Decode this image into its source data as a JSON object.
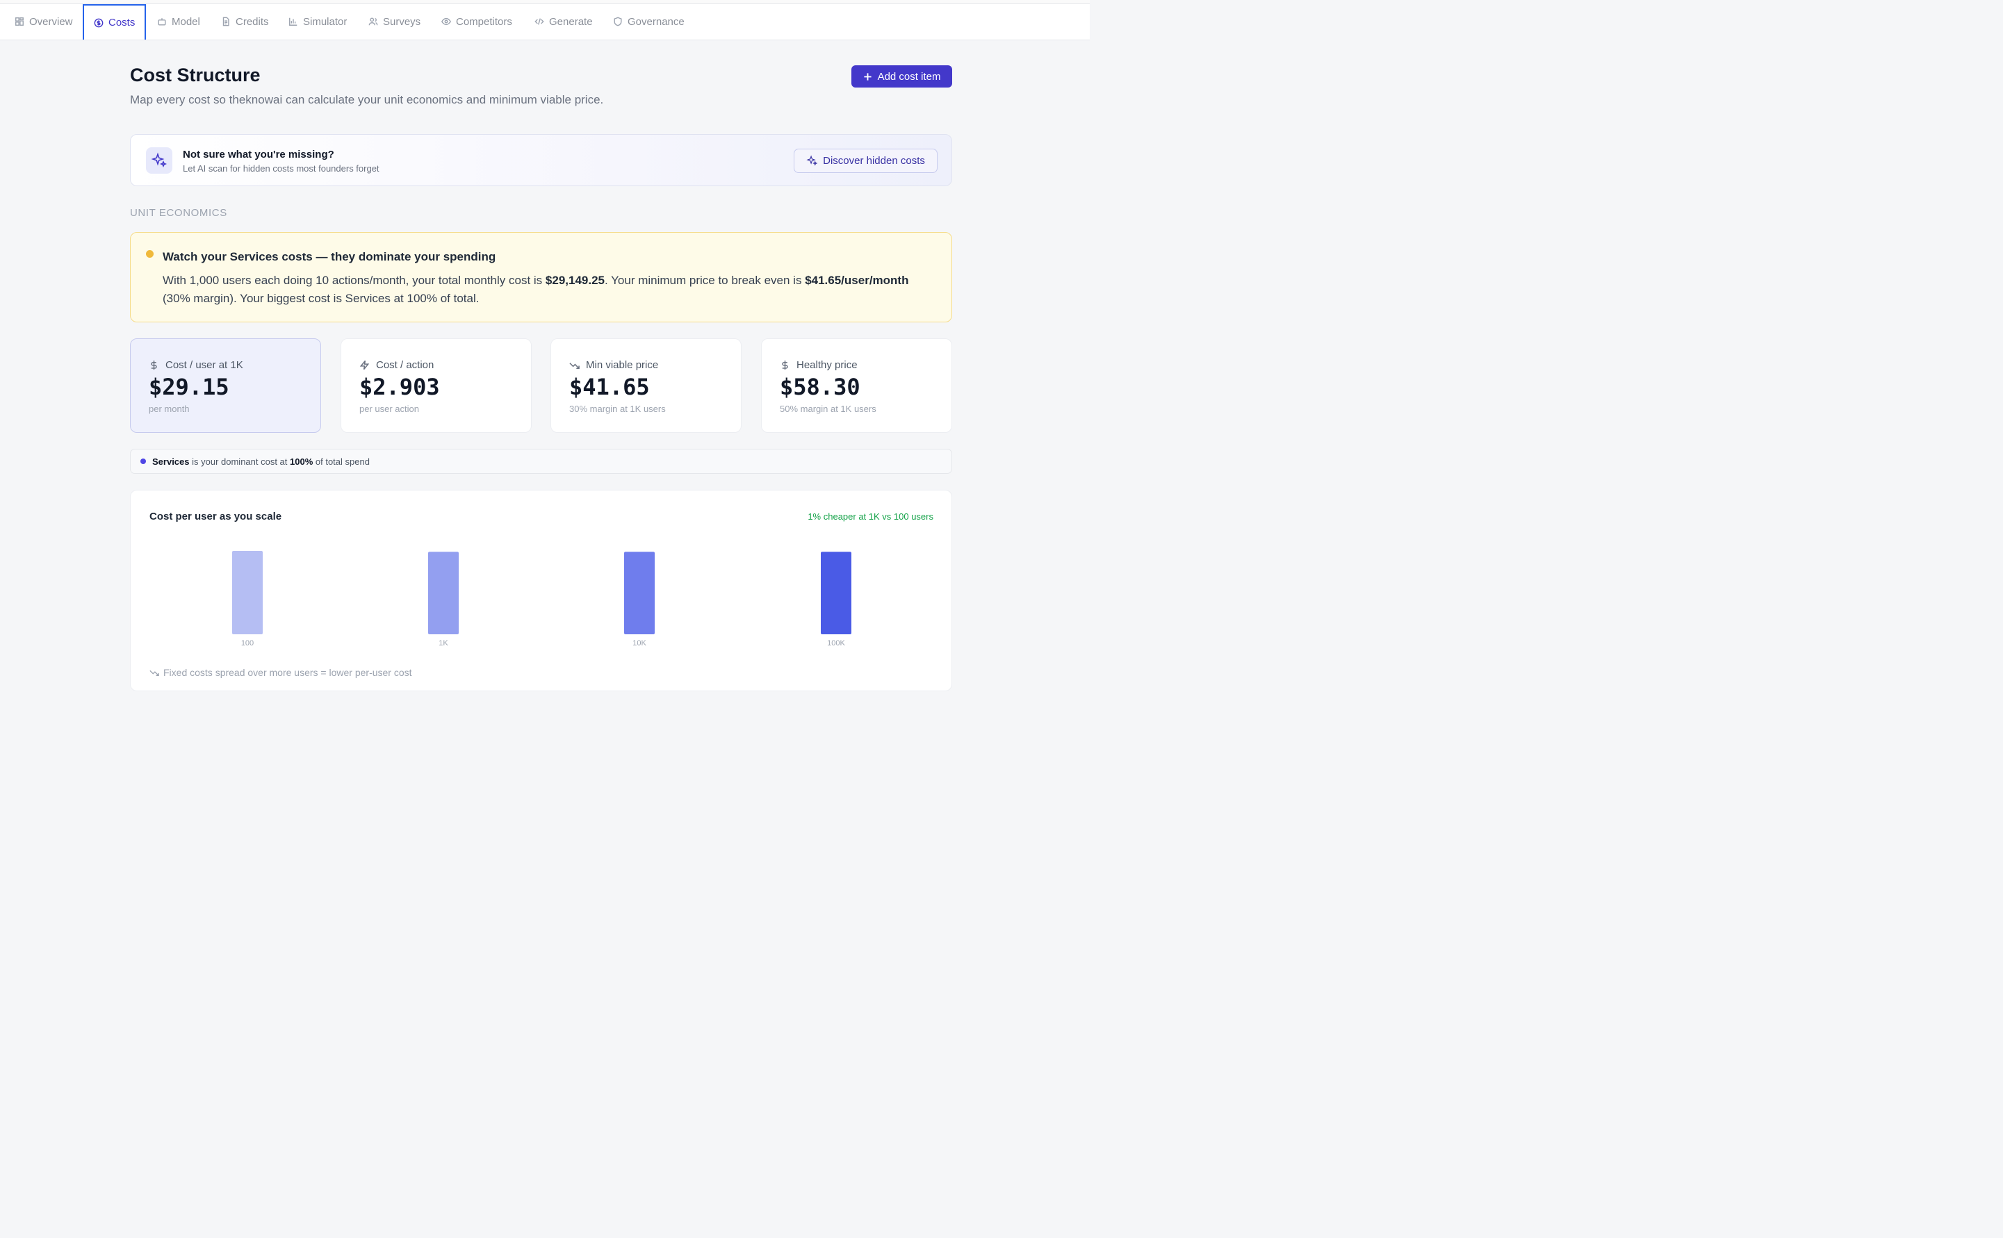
{
  "tabs": [
    {
      "label": "Overview",
      "icon": "grid-icon"
    },
    {
      "label": "Costs",
      "icon": "dollar-circle-icon",
      "active": true
    },
    {
      "label": "Model",
      "icon": "robot-icon"
    },
    {
      "label": "Credits",
      "icon": "document-icon"
    },
    {
      "label": "Simulator",
      "icon": "bar-chart-icon"
    },
    {
      "label": "Surveys",
      "icon": "users-icon"
    },
    {
      "label": "Competitors",
      "icon": "eye-icon"
    },
    {
      "label": "Generate",
      "icon": "code-icon"
    },
    {
      "label": "Governance",
      "icon": "shield-icon"
    }
  ],
  "header": {
    "title": "Cost Structure",
    "subtitle": "Map every cost so theknowai can calculate your unit economics and minimum viable price.",
    "add_button_label": "Add cost item"
  },
  "ai_card": {
    "title": "Not sure what you're missing?",
    "subtitle": "Let AI scan for hidden costs most founders forget",
    "button_label": "Discover hidden costs"
  },
  "section_label": "UNIT ECONOMICS",
  "alert": {
    "title": "Watch your Services costs — they dominate your spending",
    "body_1": "With 1,000 users each doing 10 actions/month, your total monthly cost is ",
    "total_cost": "$29,149.25",
    "body_2": ". Your minimum price to break even is ",
    "min_price": "$41.65/user/month",
    "body_3": " (30% margin). Your biggest cost is Services at 100% of total."
  },
  "metrics": [
    {
      "label": "Cost / user at 1K",
      "value": "$29.15",
      "sub": "per month",
      "icon": "dollar-icon"
    },
    {
      "label": "Cost / action",
      "value": "$2.903",
      "sub": "per user action",
      "icon": "lightning-icon"
    },
    {
      "label": "Min viable price",
      "value": "$41.65",
      "sub": "30% margin at 1K users",
      "icon": "trending-down-icon"
    },
    {
      "label": "Healthy price",
      "value": "$58.30",
      "sub": "50% margin at 1K users",
      "icon": "dollar-icon"
    }
  ],
  "dominant": {
    "category": "Services",
    "middle": " is your dominant cost at ",
    "percent": "100%",
    "suffix": " of total spend"
  },
  "chart_data": {
    "type": "bar",
    "title": "Cost per user as you scale",
    "note": "1% cheaper at 1K vs 100 users",
    "categories": [
      "100",
      "1K",
      "10K",
      "100K"
    ],
    "values": [
      29.45,
      29.15,
      29.15,
      29.15
    ],
    "colors": [
      "#b5bef3",
      "#939ff0",
      "#6f7ded",
      "#4a5be6"
    ],
    "footnote": "Fixed costs spread over more users = lower per-user cost"
  }
}
